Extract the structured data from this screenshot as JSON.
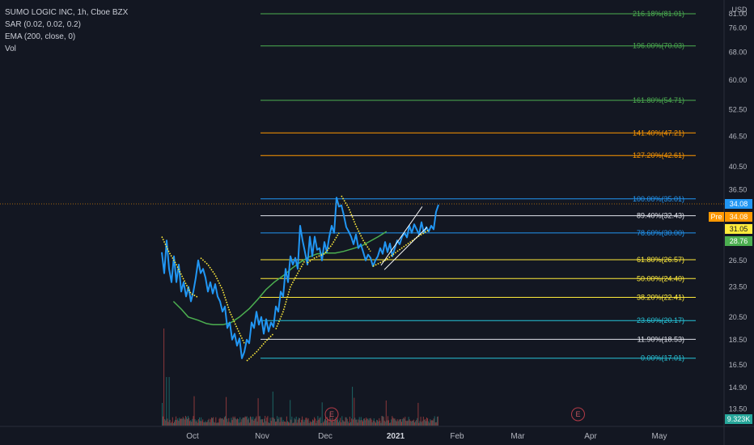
{
  "legend": {
    "symbol": "SUMO LOGIC INC, 1h, Cboe BZX",
    "sar": "SAR (0.02, 0.02, 0.2)",
    "ema": "EMA (200, close, 0)",
    "vol": "Vol"
  },
  "currency": "USD",
  "colors": {
    "background": "#131722",
    "price_line": "#2196f3",
    "sar_dots": "#ffeb3b",
    "ema_line": "#4caf50",
    "trend_line": "#ffffff",
    "volume_up": "#26a69a",
    "volume_down": "#ef5350"
  },
  "chart_data": {
    "type": "line",
    "y_axis": {
      "ticks": [
        81.0,
        76.0,
        68.0,
        60.0,
        52.5,
        46.5,
        40.5,
        36.5,
        32.5,
        29.0,
        26.5,
        23.5,
        20.5,
        18.5,
        16.5,
        14.9,
        13.5
      ],
      "ylim": [
        12.3,
        84.0
      ],
      "scale": "log"
    },
    "x_axis": {
      "ticks": [
        "Oct",
        "Nov",
        "Dec",
        "2021",
        "Feb",
        "Mar",
        "Apr",
        "May"
      ]
    },
    "fib_levels": [
      {
        "label": "216.18%(81.01)",
        "value": 81.01,
        "color": "#4caf50"
      },
      {
        "label": "196.00%(70.03)",
        "value": 70.03,
        "color": "#4caf50"
      },
      {
        "label": "161.80%(54.71)",
        "value": 54.71,
        "color": "#4caf50"
      },
      {
        "label": "141.40%(47.21)",
        "value": 47.21,
        "color": "#ff9800"
      },
      {
        "label": "127.20%(42.61)",
        "value": 42.61,
        "color": "#ff9800"
      },
      {
        "label": "100.00%(35.01)",
        "value": 35.01,
        "color": "#2196f3"
      },
      {
        "label": "89.40%(32.43)",
        "value": 32.43,
        "color": "#e0e3eb"
      },
      {
        "label": "78.60%(30.00)",
        "value": 30.0,
        "color": "#2196f3"
      },
      {
        "label": "61.80%(26.57)",
        "value": 26.57,
        "color": "#ffeb3b"
      },
      {
        "label": "50.00%(24.40)",
        "value": 24.4,
        "color": "#ffeb3b"
      },
      {
        "label": "38.20%(22.41)",
        "value": 22.41,
        "color": "#ffeb3b"
      },
      {
        "label": "23.60%(20.17)",
        "value": 20.17,
        "color": "#26c6da"
      },
      {
        "label": "11.90%(18.53)",
        "value": 18.53,
        "color": "#e0e3eb"
      },
      {
        "label": "0.00%(17.01)",
        "value": 17.01,
        "color": "#26c6da"
      }
    ],
    "price_series": {
      "x": [
        0.0,
        1.0,
        2.0,
        3.0,
        4.0,
        5.0,
        6.0,
        7.0,
        8.0,
        9.0,
        10.0,
        11.0,
        12.0,
        13.0,
        14.0,
        15.0,
        16.0,
        17.0,
        18.0,
        19.0,
        20.0,
        21.0,
        22.0,
        23.0,
        24.0,
        25.0,
        26.0,
        27.0,
        28.0,
        29.0,
        30.0,
        31.0,
        32.0,
        33.0,
        34.0,
        35.0,
        36.0,
        37.0,
        38.0,
        39.0,
        40.0,
        41.0,
        42.0,
        43.0,
        44.0,
        45.0,
        46.0,
        47.0,
        48.0,
        49.0,
        50.0,
        51.0,
        52.0,
        53.0,
        54.0,
        55.0,
        56.0,
        57.0,
        58.0,
        59.0,
        60.0,
        61.0,
        62.0,
        63.0,
        64.0,
        65.0,
        66.0,
        67.0,
        68.0,
        69.0,
        70.0,
        71.0,
        72.0,
        73.0,
        74.0,
        75.0,
        76.0,
        77.0,
        78.0,
        79.0,
        80.0,
        81.0,
        82.0,
        83.0,
        84.0,
        85.0,
        86.0,
        87.0,
        88.0,
        89.0,
        90.0,
        91.0,
        92.0,
        93.0,
        94.0,
        95.0,
        96.0,
        97.0,
        98.0,
        99.0,
        100.0,
        101.0,
        102.0,
        103.0,
        104.0,
        105.0,
        106.0,
        107.0,
        108.0,
        109.0,
        110.0,
        111.0,
        112.0,
        113.0,
        114.0
      ],
      "values": [
        27.5,
        25.0,
        29.0,
        25.5,
        24.0,
        27.0,
        24.0,
        26.0,
        23.0,
        24.0,
        22.5,
        23.5,
        22.0,
        23.0,
        24.5,
        26.5,
        25.0,
        25.5,
        24.5,
        23.0,
        24.0,
        22.8,
        23.8,
        22.5,
        22.0,
        21.0,
        21.5,
        19.5,
        20.0,
        18.5,
        19.0,
        18.0,
        18.6,
        17.0,
        17.5,
        18.5,
        18.2,
        20.0,
        19.5,
        21.0,
        19.8,
        20.5,
        19.0,
        20.3,
        19.2,
        20.0,
        19.6,
        21.5,
        21.0,
        23.0,
        22.5,
        25.5,
        24.0,
        27.0,
        26.0,
        26.8,
        25.5,
        31.0,
        29.0,
        27.5,
        26.0,
        29.5,
        27.0,
        29.5,
        27.8,
        28.0,
        26.5,
        28.8,
        27.5,
        29.5,
        31.0,
        30.0,
        35.2,
        33.8,
        34.0,
        32.5,
        30.8,
        30.2,
        29.5,
        28.5,
        29.8,
        28.0,
        28.5,
        27.5,
        26.5,
        27.2,
        26.8,
        25.8,
        26.5,
        27.0,
        28.0,
        27.3,
        28.8,
        27.5,
        28.6,
        27.0,
        28.0,
        29.0,
        28.5,
        29.5,
        30.0,
        29.4,
        31.0,
        30.0,
        31.2,
        30.5,
        29.8,
        31.5,
        30.0,
        30.8,
        30.2,
        31.0,
        30.5,
        33.0,
        34.08
      ]
    },
    "ema_series": {
      "x": [
        4.8,
        8.2,
        10.9,
        15.0,
        18.4,
        21.1,
        25.2,
        28.6,
        32.0,
        36.1,
        39.5,
        42.9,
        46.3,
        50.4,
        53.8,
        57.2,
        60.6,
        64.0,
        68.1,
        71.5,
        74.9,
        78.3,
        82.4,
        85.8,
        89.2,
        92.6
      ],
      "values": [
        22.0,
        21.2,
        20.5,
        20.2,
        19.9,
        19.8,
        19.8,
        20.0,
        20.5,
        21.3,
        22.2,
        23.2,
        24.0,
        24.8,
        25.6,
        26.3,
        26.9,
        27.3,
        27.4,
        27.4,
        27.6,
        27.9,
        28.3,
        28.9,
        29.5,
        30.2
      ]
    },
    "sar_segments": [
      {
        "x": [
          0.0,
          3.0,
          6.0,
          9.0,
          12.0,
          15.0
        ],
        "values": [
          29.5,
          27.5,
          26.0,
          24.3,
          22.8,
          22.4
        ]
      },
      {
        "x": [
          16.0,
          19.0,
          22.0,
          25.0,
          28.0,
          31.0,
          34.0
        ],
        "values": [
          26.8,
          26.0,
          24.8,
          23.2,
          21.0,
          19.5,
          18.2
        ]
      },
      {
        "x": [
          35.0,
          39.0,
          43.0,
          46.0
        ],
        "values": [
          16.8,
          17.5,
          18.4,
          19.0
        ]
      },
      {
        "x": [
          47.0,
          50.0,
          53.0,
          56.0,
          59.0
        ],
        "values": [
          19.4,
          21.0,
          23.5,
          25.0,
          26.5
        ]
      },
      {
        "x": [
          60.0,
          63.0,
          67.0,
          70.0,
          73.0
        ],
        "values": [
          26.2,
          26.8,
          27.3,
          28.4,
          30.0
        ]
      },
      {
        "x": [
          74.0,
          77.0,
          80.0,
          83.0,
          86.0
        ],
        "values": [
          35.5,
          33.6,
          31.0,
          29.0,
          27.6
        ]
      },
      {
        "x": [
          87.0,
          92.0,
          97.0,
          102.0,
          106.0,
          110.0
        ],
        "values": [
          25.8,
          26.5,
          27.6,
          28.7,
          29.6,
          30.4
        ]
      }
    ],
    "trend_lines": [
      {
        "x": [
          90.3,
          107.3
        ],
        "values": [
          25.9,
          33.8
        ]
      },
      {
        "x": [
          91.7,
          109.3
        ],
        "values": [
          25.4,
          30.8
        ]
      }
    ],
    "volume": {
      "x_range": [
        0,
        114
      ],
      "max_label": "9.323K"
    },
    "earnings_markers": [
      {
        "label": "E",
        "x": 70.0
      },
      {
        "label": "E",
        "x": 171.5
      }
    ],
    "price_badges": [
      {
        "label": "",
        "value": "34.08",
        "bg": "#2196f3",
        "fg": "#ffffff"
      },
      {
        "label": "Pre",
        "value": "34.08",
        "bg": "#ff9800",
        "fg": "#ffffff"
      },
      {
        "label": "",
        "value": "31.05",
        "bg": "#ffeb3b",
        "fg": "#131722"
      },
      {
        "label": "",
        "value": "28.76",
        "bg": "#4caf50",
        "fg": "#ffffff"
      },
      {
        "label": "",
        "value": "9.323K",
        "bg": "#26a69a",
        "fg": "#ffffff"
      }
    ]
  }
}
